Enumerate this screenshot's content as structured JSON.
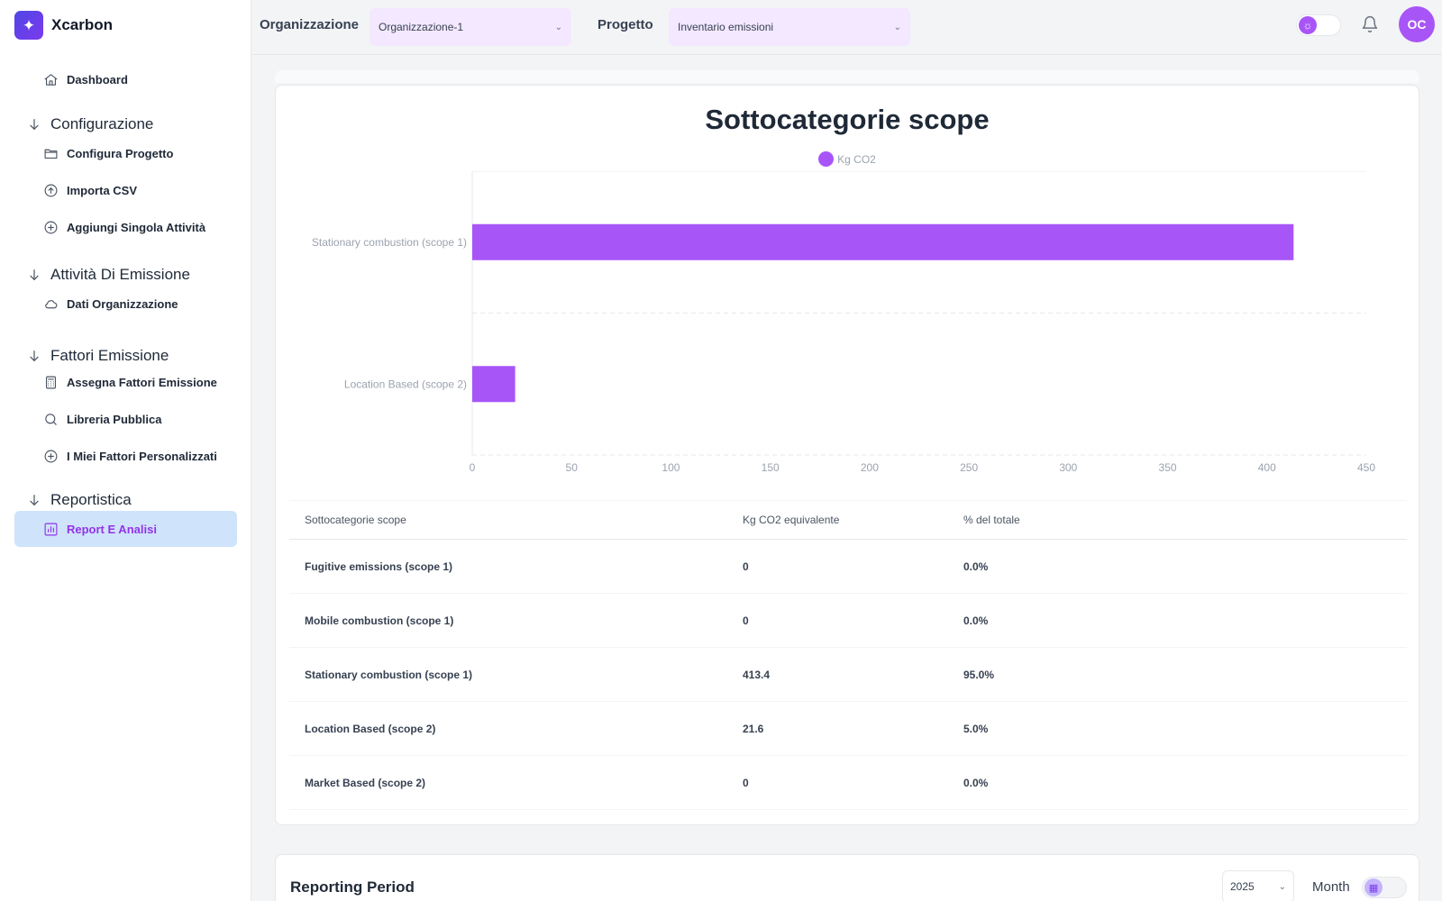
{
  "app": {
    "name": "Xcarbon",
    "logo_icon": "sparkles-icon"
  },
  "sidebar": {
    "items": [
      {
        "type": "item",
        "label": "Dashboard",
        "icon": "home-icon"
      },
      {
        "type": "section",
        "label": "Configurazione"
      },
      {
        "type": "item",
        "label": "Configura Progetto",
        "icon": "folder-icon"
      },
      {
        "type": "item",
        "label": "Importa CSV",
        "icon": "upload-circle-icon"
      },
      {
        "type": "item",
        "label": "Aggiungi Singola Attività",
        "icon": "plus-circle-icon"
      },
      {
        "type": "section",
        "label": "Attività Di Emissione"
      },
      {
        "type": "item",
        "label": "Dati Organizzazione",
        "icon": "cloud-icon"
      },
      {
        "type": "section",
        "label": "Fattori Emissione"
      },
      {
        "type": "item",
        "label": "Assegna Fattori Emissione",
        "icon": "calculator-icon"
      },
      {
        "type": "item",
        "label": "Libreria Pubblica",
        "icon": "search-icon"
      },
      {
        "type": "item",
        "label": "I Miei Fattori Personalizzati",
        "icon": "plus-circle-icon"
      },
      {
        "type": "section",
        "label": "Reportistica"
      },
      {
        "type": "item",
        "label": "Report E Analisi",
        "icon": "bar-chart-icon",
        "active": true
      }
    ]
  },
  "header": {
    "org_label": "Organizzazione",
    "org_value": "Organizzazione-1",
    "project_label": "Progetto",
    "project_value": "Inventario emissioni",
    "avatar_initials": "OC"
  },
  "chart_data": {
    "type": "bar",
    "orientation": "horizontal",
    "title": "Sottocategorie scope",
    "categories": [
      "Stationary combustion (scope 1)",
      "Location Based (scope 2)"
    ],
    "series": [
      {
        "name": "Kg CO2",
        "values": [
          413.4,
          21.6
        ],
        "color": "#a855f7"
      }
    ],
    "xlim": [
      0,
      450
    ],
    "xticks": [
      0,
      50,
      100,
      150,
      200,
      250,
      300,
      350,
      400,
      450
    ],
    "legend": "top-center",
    "grid": true
  },
  "table": {
    "headers": [
      "Sottocategorie scope",
      "Kg CO2 equivalente",
      "% del totale"
    ],
    "rows": [
      [
        "Fugitive emissions (scope 1)",
        "0",
        "0.0%"
      ],
      [
        "Mobile combustion (scope 1)",
        "0",
        "0.0%"
      ],
      [
        "Stationary combustion (scope 1)",
        "413.4",
        "95.0%"
      ],
      [
        "Location Based (scope 2)",
        "21.6",
        "5.0%"
      ],
      [
        "Market Based (scope 2)",
        "0",
        "0.0%"
      ]
    ]
  },
  "reporting": {
    "title": "Reporting Period",
    "year": "2025",
    "month_label": "Month"
  },
  "colors": {
    "accent": "#a855f7",
    "active_bg": "#cfe3fb",
    "active_text": "#9333ea"
  }
}
